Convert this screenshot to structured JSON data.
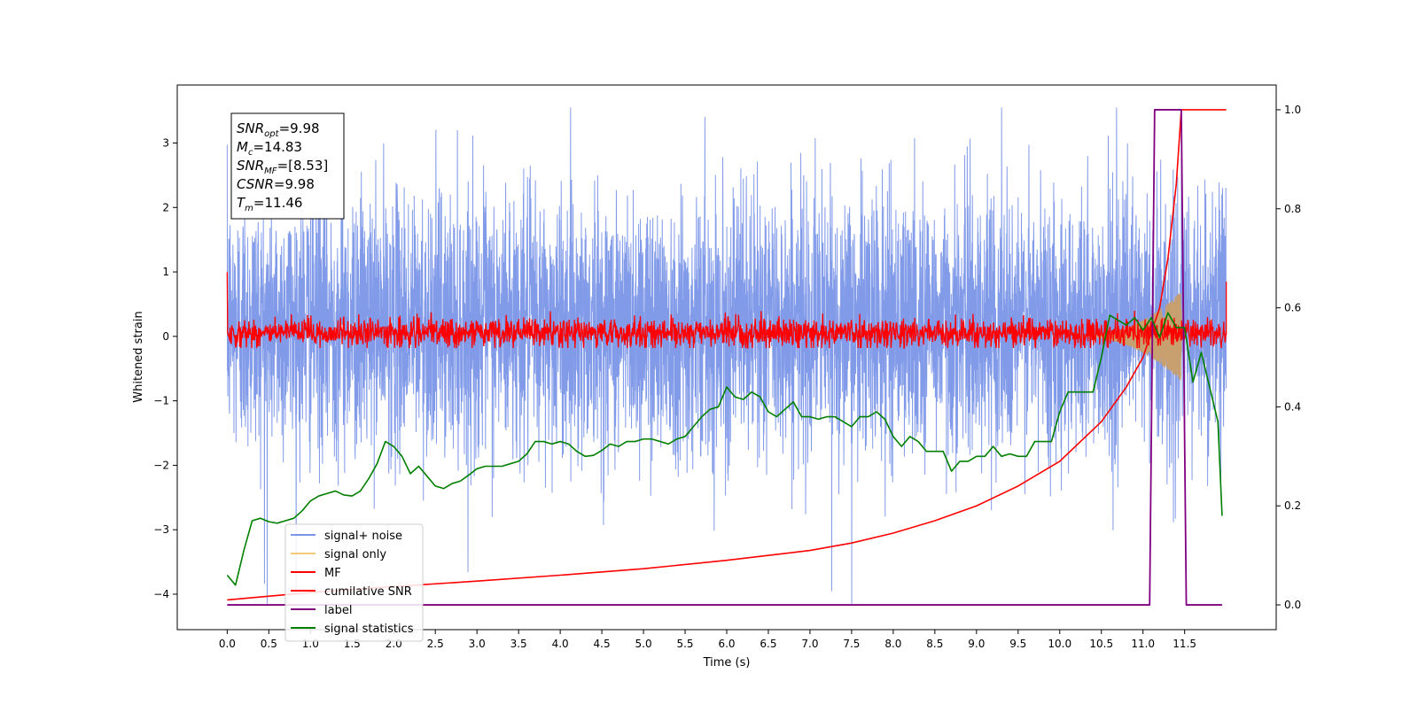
{
  "chart_data": {
    "type": "line",
    "xlabel": "Time (s)",
    "ylabel": "Whitened strain",
    "xlim": [
      -0.6,
      12.6
    ],
    "ylim": [
      -4.55,
      3.9
    ],
    "y2lim": [
      -0.05,
      1.05
    ],
    "x_ticks": [
      0.0,
      0.5,
      1.0,
      1.5,
      2.0,
      2.5,
      3.0,
      3.5,
      4.0,
      4.5,
      5.0,
      5.5,
      6.0,
      6.5,
      7.0,
      7.5,
      8.0,
      8.5,
      9.0,
      9.5,
      10.0,
      10.5,
      11.0,
      11.5
    ],
    "x_tick_labels": [
      "0.0",
      "0.5",
      "1.0",
      "1.5",
      "2.0",
      "2.5",
      "3.0",
      "3.5",
      "4.0",
      "4.5",
      "5.0",
      "5.5",
      "6.0",
      "6.5",
      "7.0",
      "7.5",
      "8.0",
      "8.5",
      "9.0",
      "9.5",
      "10.0",
      "10.5",
      "11.0",
      "11.5"
    ],
    "y_ticks": [
      -4,
      -3,
      -2,
      -1,
      0,
      1,
      2,
      3
    ],
    "y_tick_labels": [
      "−4",
      "−3",
      "−2",
      "−1",
      "0",
      "1",
      "2",
      "3"
    ],
    "y2_ticks": [
      0.0,
      0.2,
      0.4,
      0.6,
      0.8,
      1.0
    ],
    "y2_tick_labels": [
      "0.0",
      "0.2",
      "0.4",
      "0.6",
      "0.8",
      "1.0"
    ],
    "grid": false,
    "legend_position": "lower-left",
    "info_box": [
      {
        "sym": "SNR",
        "sub": "opt",
        "rest": "=9.98"
      },
      {
        "sym": "M",
        "sub": "c",
        "rest": "=14.83"
      },
      {
        "sym": "SNR",
        "sub": "MF",
        "rest": "=[8.53]"
      },
      {
        "sym": "CSNR",
        "sub": "",
        "rest": "=9.98"
      },
      {
        "sym": "T",
        "sub": "m",
        "rest": "=11.46"
      }
    ],
    "series": [
      {
        "name": "signal+ noise",
        "color": "#7b96e8",
        "axis": "left",
        "kind": "noise",
        "t_start": 0.0,
        "t_end": 12.0,
        "center": 0.0,
        "typical_range": [
          -1.9,
          2.3
        ],
        "peak_max": 3.55,
        "peak_min": -4.15
      },
      {
        "name": "signal only",
        "color": "#f5c87a",
        "axis": "left",
        "kind": "chirp",
        "t_start": 10.2,
        "t_end": 11.46,
        "peak_amplitude": 0.7
      },
      {
        "name": "MF",
        "color": "#ff0000",
        "axis": "left",
        "kind": "noise",
        "t_start": 0.0,
        "t_end": 12.0,
        "center": 0.0,
        "typical_range": [
          -0.15,
          0.3
        ],
        "start_value": 1.0
      },
      {
        "name": "cumilative SNR",
        "color": "#ff0000",
        "axis": "right",
        "x": [
          0.0,
          1.0,
          2.0,
          3.0,
          4.0,
          5.0,
          6.0,
          7.0,
          7.5,
          8.0,
          8.5,
          9.0,
          9.5,
          10.0,
          10.5,
          10.8,
          11.0,
          11.2,
          11.3,
          11.4,
          11.46,
          12.0
        ],
        "y": [
          0.01,
          0.025,
          0.037,
          0.048,
          0.06,
          0.073,
          0.09,
          0.11,
          0.125,
          0.145,
          0.17,
          0.2,
          0.24,
          0.29,
          0.37,
          0.44,
          0.5,
          0.6,
          0.7,
          0.85,
          1.0,
          1.0
        ]
      },
      {
        "name": "label",
        "color": "#800080",
        "axis": "right",
        "x": [
          0.0,
          11.08,
          11.14,
          11.46,
          11.52,
          11.95
        ],
        "y": [
          0.0,
          0.0,
          1.0,
          1.0,
          0.0,
          0.0
        ]
      },
      {
        "name": "signal statistics",
        "color": "#008000",
        "axis": "right",
        "x": [
          0.0,
          0.1,
          0.2,
          0.3,
          0.4,
          0.5,
          0.6,
          0.7,
          0.8,
          0.9,
          1.0,
          1.1,
          1.2,
          1.3,
          1.4,
          1.5,
          1.6,
          1.7,
          1.8,
          1.9,
          2.0,
          2.1,
          2.2,
          2.3,
          2.4,
          2.5,
          2.6,
          2.7,
          2.8,
          2.9,
          3.0,
          3.1,
          3.2,
          3.3,
          3.4,
          3.5,
          3.6,
          3.7,
          3.8,
          3.9,
          4.0,
          4.1,
          4.2,
          4.3,
          4.4,
          4.5,
          4.6,
          4.7,
          4.8,
          4.9,
          5.0,
          5.1,
          5.2,
          5.3,
          5.4,
          5.5,
          5.6,
          5.7,
          5.8,
          5.9,
          6.0,
          6.1,
          6.2,
          6.3,
          6.4,
          6.5,
          6.6,
          6.7,
          6.8,
          6.9,
          7.0,
          7.1,
          7.2,
          7.3,
          7.4,
          7.5,
          7.6,
          7.7,
          7.8,
          7.9,
          8.0,
          8.1,
          8.2,
          8.3,
          8.4,
          8.5,
          8.6,
          8.7,
          8.8,
          8.9,
          9.0,
          9.1,
          9.2,
          9.3,
          9.4,
          9.5,
          9.6,
          9.7,
          9.8,
          9.9,
          10.0,
          10.1,
          10.2,
          10.3,
          10.4,
          10.5,
          10.6,
          10.7,
          10.8,
          10.9,
          11.0,
          11.1,
          11.2,
          11.3,
          11.4,
          11.5,
          11.6,
          11.7,
          11.8,
          11.9,
          11.95
        ],
        "y": [
          0.06,
          0.04,
          0.11,
          0.17,
          0.175,
          0.168,
          0.165,
          0.17,
          0.175,
          0.19,
          0.21,
          0.22,
          0.225,
          0.23,
          0.222,
          0.22,
          0.23,
          0.255,
          0.285,
          0.33,
          0.32,
          0.3,
          0.265,
          0.28,
          0.26,
          0.24,
          0.235,
          0.245,
          0.25,
          0.262,
          0.275,
          0.28,
          0.28,
          0.28,
          0.285,
          0.29,
          0.305,
          0.33,
          0.33,
          0.325,
          0.33,
          0.325,
          0.31,
          0.3,
          0.302,
          0.312,
          0.325,
          0.32,
          0.33,
          0.33,
          0.335,
          0.335,
          0.33,
          0.325,
          0.335,
          0.34,
          0.36,
          0.38,
          0.395,
          0.4,
          0.44,
          0.42,
          0.415,
          0.43,
          0.42,
          0.39,
          0.38,
          0.395,
          0.41,
          0.38,
          0.38,
          0.375,
          0.38,
          0.38,
          0.37,
          0.36,
          0.38,
          0.38,
          0.39,
          0.375,
          0.34,
          0.32,
          0.34,
          0.33,
          0.31,
          0.31,
          0.31,
          0.27,
          0.29,
          0.29,
          0.3,
          0.3,
          0.32,
          0.3,
          0.305,
          0.3,
          0.3,
          0.33,
          0.33,
          0.33,
          0.39,
          0.43,
          0.43,
          0.43,
          0.43,
          0.5,
          0.585,
          0.575,
          0.565,
          0.58,
          0.555,
          0.58,
          0.54,
          0.59,
          0.56,
          0.56,
          0.45,
          0.51,
          0.44,
          0.37,
          0.18
        ]
      }
    ]
  }
}
